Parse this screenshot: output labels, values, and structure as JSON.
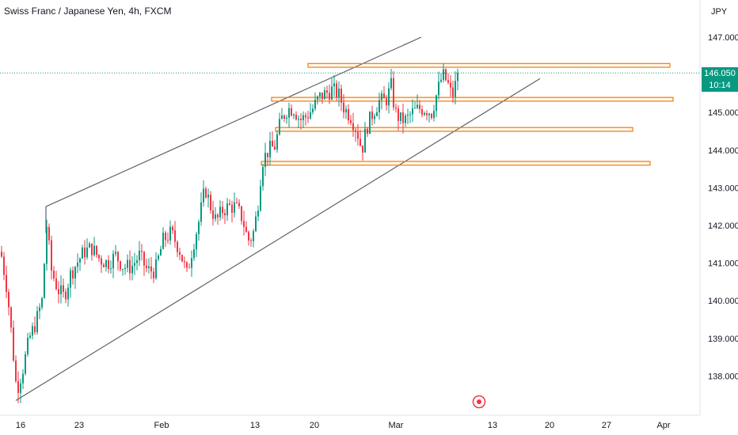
{
  "title": "Swiss Franc / Japanese Yen, 4h, FXCM",
  "price_badge": {
    "price": "146.050",
    "countdown": "10:14",
    "color": "#089981"
  },
  "colors": {
    "up": "#089981",
    "down": "#f23645",
    "zone": "#f57c00",
    "trendline": "#5d606b",
    "last_price_line": "#089981",
    "alert": "#f23645"
  },
  "chart_data": {
    "type": "candlestick",
    "title": "Swiss Franc / Japanese Yen, 4h, FXCM",
    "y_unit": "JPY",
    "ylim": [
      137.2,
      147.9
    ],
    "x_tick_labels": [
      "16",
      "23",
      "Feb",
      "13",
      "20",
      "Mar",
      "13",
      "20",
      "27",
      "Apr"
    ],
    "y_tick_labels": [
      "147.000",
      "146.000",
      "145.000",
      "144.000",
      "143.000",
      "142.000",
      "141.000",
      "140.000",
      "139.000",
      "138.000"
    ],
    "y_tick_values": [
      147,
      146,
      145,
      144,
      143,
      142,
      141,
      140,
      139,
      138
    ],
    "last_price": 146.05,
    "candle_path_anchors": [
      {
        "x": 0,
        "y": 141.3
      },
      {
        "x": 8,
        "y": 140.3
      },
      {
        "x": 14,
        "y": 139.0
      },
      {
        "x": 20,
        "y": 137.6
      },
      {
        "x": 28,
        "y": 138.2
      },
      {
        "x": 36,
        "y": 139.0
      },
      {
        "x": 44,
        "y": 139.4
      },
      {
        "x": 52,
        "y": 140.0
      },
      {
        "x": 58,
        "y": 142.0
      },
      {
        "x": 64,
        "y": 140.8
      },
      {
        "x": 72,
        "y": 140.3
      },
      {
        "x": 80,
        "y": 140.1
      },
      {
        "x": 88,
        "y": 140.7
      },
      {
        "x": 96,
        "y": 141.0
      },
      {
        "x": 105,
        "y": 141.3
      },
      {
        "x": 115,
        "y": 141.4
      },
      {
        "x": 125,
        "y": 141.1
      },
      {
        "x": 135,
        "y": 141.0
      },
      {
        "x": 145,
        "y": 141.2
      },
      {
        "x": 155,
        "y": 140.9
      },
      {
        "x": 165,
        "y": 140.9
      },
      {
        "x": 175,
        "y": 141.2
      },
      {
        "x": 185,
        "y": 140.8
      },
      {
        "x": 195,
        "y": 140.8
      },
      {
        "x": 205,
        "y": 141.6
      },
      {
        "x": 215,
        "y": 141.8
      },
      {
        "x": 225,
        "y": 141.4
      },
      {
        "x": 235,
        "y": 140.7
      },
      {
        "x": 242,
        "y": 141.4
      },
      {
        "x": 250,
        "y": 142.1
      },
      {
        "x": 258,
        "y": 143.0
      },
      {
        "x": 265,
        "y": 142.5
      },
      {
        "x": 272,
        "y": 142.1
      },
      {
        "x": 280,
        "y": 142.4
      },
      {
        "x": 288,
        "y": 142.5
      },
      {
        "x": 296,
        "y": 142.5
      },
      {
        "x": 305,
        "y": 142.2
      },
      {
        "x": 312,
        "y": 141.6
      },
      {
        "x": 318,
        "y": 141.7
      },
      {
        "x": 324,
        "y": 142.4
      },
      {
        "x": 330,
        "y": 143.7
      },
      {
        "x": 338,
        "y": 144.0
      },
      {
        "x": 346,
        "y": 144.1
      },
      {
        "x": 354,
        "y": 144.8
      },
      {
        "x": 362,
        "y": 145.1
      },
      {
        "x": 370,
        "y": 145.1
      },
      {
        "x": 378,
        "y": 144.8
      },
      {
        "x": 386,
        "y": 144.9
      },
      {
        "x": 394,
        "y": 145.1
      },
      {
        "x": 402,
        "y": 145.4
      },
      {
        "x": 410,
        "y": 145.5
      },
      {
        "x": 418,
        "y": 145.6
      },
      {
        "x": 426,
        "y": 145.5
      },
      {
        "x": 434,
        "y": 145.1
      },
      {
        "x": 442,
        "y": 144.9
      },
      {
        "x": 450,
        "y": 144.5
      },
      {
        "x": 456,
        "y": 144.0
      },
      {
        "x": 462,
        "y": 144.6
      },
      {
        "x": 470,
        "y": 145.0
      },
      {
        "x": 478,
        "y": 145.3
      },
      {
        "x": 486,
        "y": 145.3
      },
      {
        "x": 493,
        "y": 145.7
      },
      {
        "x": 498,
        "y": 145.0
      },
      {
        "x": 505,
        "y": 144.8
      },
      {
        "x": 512,
        "y": 144.8
      },
      {
        "x": 520,
        "y": 145.0
      },
      {
        "x": 528,
        "y": 145.1
      },
      {
        "x": 536,
        "y": 145.1
      },
      {
        "x": 544,
        "y": 145.0
      },
      {
        "x": 552,
        "y": 145.6
      },
      {
        "x": 558,
        "y": 146.0
      },
      {
        "x": 564,
        "y": 145.8
      },
      {
        "x": 570,
        "y": 145.4
      },
      {
        "x": 578,
        "y": 146.05
      }
    ],
    "trendlines": [
      {
        "from": {
          "x": 20,
          "y": 137.35
        },
        "to": {
          "x": 682,
          "y": 145.9
        }
      },
      {
        "from": {
          "x": 58,
          "y": 142.5
        },
        "to": {
          "x": 532,
          "y": 147.0
        }
      },
      {
        "from": {
          "x": 58,
          "y": 142.5
        },
        "to": {
          "x": 58,
          "y": 141.8
        }
      }
    ],
    "zones": [
      {
        "x1": 389,
        "x2": 846,
        "y_low": 146.2,
        "y_high": 146.3
      },
      {
        "x1": 343,
        "x2": 850,
        "y_low": 145.3,
        "y_high": 145.4
      },
      {
        "x1": 348,
        "x2": 799,
        "y_low": 144.5,
        "y_high": 144.6
      },
      {
        "x1": 330,
        "x2": 821,
        "y_low": 143.6,
        "y_high": 143.7
      }
    ]
  }
}
